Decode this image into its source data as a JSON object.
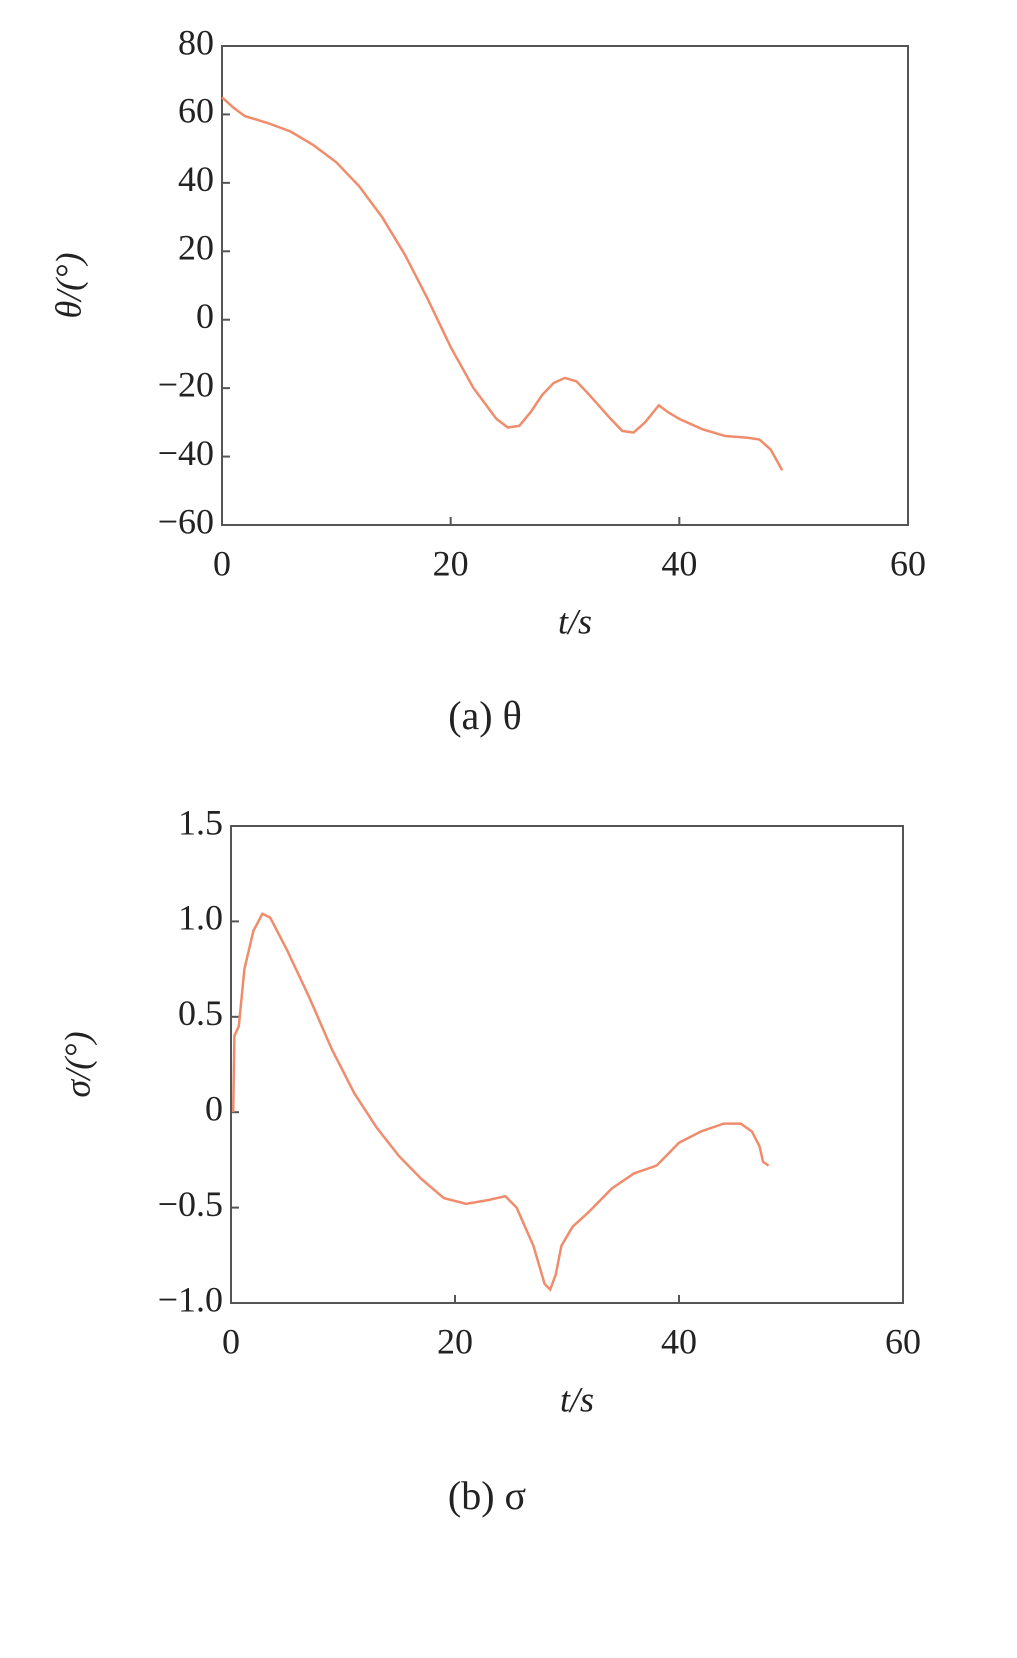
{
  "chart_data": [
    {
      "type": "line",
      "caption": "(a) θ",
      "xlabel": "t/s",
      "ylabel": "θ/(°)",
      "color": "#f08c6c",
      "xlim": [
        0,
        60
      ],
      "ylim": [
        -60,
        80
      ],
      "xticks": [
        0,
        20,
        40,
        60
      ],
      "yticks": [
        {
          "value": -60,
          "label": "−60"
        },
        {
          "value": -40,
          "label": "−40"
        },
        {
          "value": -20,
          "label": "−20"
        },
        0,
        20,
        40,
        60,
        80
      ],
      "x": [
        0,
        1,
        2,
        4,
        6,
        8,
        10,
        12,
        14,
        16,
        18,
        20,
        22,
        24,
        25,
        26,
        27,
        28,
        29,
        30,
        31,
        32,
        34,
        35,
        36,
        37,
        38.2,
        39,
        40,
        42,
        44,
        46,
        47,
        48,
        48.5,
        49
      ],
      "y": [
        65,
        62,
        59.5,
        57.5,
        55,
        51,
        46,
        39,
        30,
        19,
        6,
        -8,
        -20,
        -29,
        -31.5,
        -31,
        -27,
        -22,
        -18.5,
        -17,
        -18,
        -21.5,
        -29,
        -32.5,
        -33,
        -30,
        -25,
        -27,
        -29,
        -32,
        -34,
        -34.5,
        -35,
        -38,
        -41,
        -44
      ]
    },
    {
      "type": "line",
      "caption": "(b) σ",
      "xlabel": "t/s",
      "ylabel": "σ/(°)",
      "color": "#f08c6c",
      "xlim": [
        0,
        60
      ],
      "ylim": [
        -1,
        1.5
      ],
      "xticks": [
        0,
        20,
        40,
        60
      ],
      "yticks": [
        {
          "value": -1,
          "label": "−1.0"
        },
        {
          "value": -0.5,
          "label": "−0.5"
        },
        0,
        0.5,
        {
          "value": 1,
          "label": "1.0"
        },
        1.5
      ],
      "x": [
        0.2,
        0.3,
        0.7,
        1.2,
        2,
        2.8,
        3.5,
        5,
        7,
        9,
        11,
        13,
        15,
        17,
        19,
        21,
        23,
        24.5,
        25.5,
        27,
        28,
        28.5,
        29,
        29.5,
        30.5,
        32,
        34,
        36,
        38,
        39,
        40,
        42,
        44,
        45.5,
        46.5,
        47.2,
        47.5,
        48
      ],
      "y": [
        0,
        0.4,
        0.45,
        0.75,
        0.95,
        1.04,
        1.02,
        0.85,
        0.6,
        0.33,
        0.1,
        -0.08,
        -0.23,
        -0.35,
        -0.45,
        -0.48,
        -0.46,
        -0.44,
        -0.5,
        -0.7,
        -0.9,
        -0.93,
        -0.85,
        -0.7,
        -0.6,
        -0.52,
        -0.4,
        -0.32,
        -0.28,
        -0.22,
        -0.16,
        -0.1,
        -0.06,
        -0.06,
        -0.1,
        -0.18,
        -0.26,
        -0.28
      ]
    }
  ]
}
